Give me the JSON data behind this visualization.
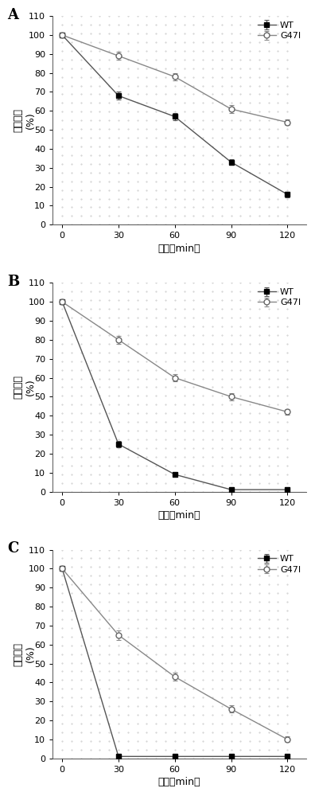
{
  "panels": [
    "A",
    "B",
    "C"
  ],
  "x": [
    0,
    30,
    60,
    90,
    120
  ],
  "xlabel": "时间（min）",
  "ylabel_top": "剩余酶活",
  "ylabel_bot": "(%)",
  "ylim": [
    0,
    110
  ],
  "yticks": [
    0,
    10,
    20,
    30,
    40,
    50,
    60,
    70,
    80,
    90,
    100,
    110
  ],
  "xticks": [
    0,
    30,
    60,
    90,
    120
  ],
  "A_WT_y": [
    100,
    68,
    57,
    33,
    16
  ],
  "A_WT_err": [
    0,
    2,
    2,
    1.5,
    1.5
  ],
  "A_G47I_y": [
    100,
    89,
    78,
    61,
    54
  ],
  "A_G47I_err": [
    0,
    2,
    2,
    2,
    1.5
  ],
  "B_WT_y": [
    100,
    25,
    9,
    1,
    1
  ],
  "B_WT_err": [
    0,
    1.5,
    1,
    0.5,
    0.5
  ],
  "B_G47I_y": [
    100,
    80,
    60,
    50,
    42
  ],
  "B_G47I_err": [
    0,
    2,
    2,
    2,
    1.5
  ],
  "C_WT_y": [
    100,
    1,
    1,
    1,
    1
  ],
  "C_WT_err": [
    0,
    0.5,
    0.5,
    0.5,
    0.5
  ],
  "C_G47I_y": [
    100,
    65,
    43,
    26,
    10
  ],
  "C_G47I_err": [
    0,
    2.5,
    2,
    2,
    1.5
  ],
  "wt_line_color": "#555555",
  "g47i_line_color": "#888888",
  "wt_marker": "s",
  "g47i_marker": "o",
  "markersize": 5,
  "linewidth": 1.0,
  "legend_wt": "WT",
  "legend_g47i": "G47I",
  "label_fontsize": 9,
  "tick_fontsize": 8,
  "panel_label_fontsize": 13,
  "legend_fontsize": 8,
  "bg_color": "#ffffff",
  "dot_color": "#cccccc"
}
